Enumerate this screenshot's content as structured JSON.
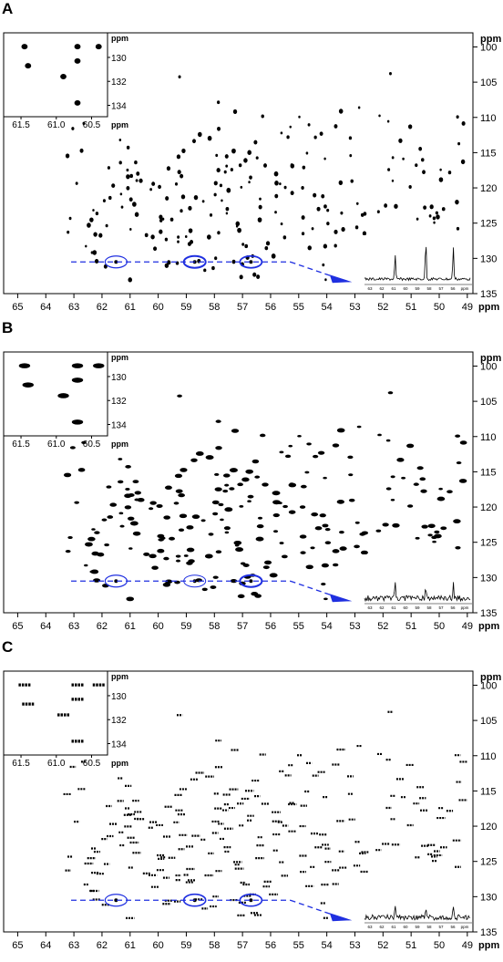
{
  "axis_unit": "ppm",
  "x_ticks": [
    65,
    64,
    63,
    62,
    61,
    60,
    59,
    58,
    57,
    56,
    55,
    54,
    53,
    52,
    51,
    50,
    49
  ],
  "y_ticks": [
    100,
    105,
    110,
    115,
    120,
    125,
    130,
    135
  ],
  "inset_x_ticks": [
    "61.5",
    "61.0",
    "60.5"
  ],
  "inset_y_ticks": [
    "130",
    "132",
    "134"
  ],
  "trace_ticks": [
    "63",
    "62",
    "61",
    "60",
    "59",
    "58",
    "57",
    "56",
    "ppm"
  ],
  "panels": [
    {
      "label": "A",
      "trace_peaks": [
        0.55,
        0.9,
        0.75
      ]
    },
    {
      "label": "B",
      "trace_peaks": [
        0.35,
        0.25,
        0.35
      ]
    },
    {
      "label": "C",
      "trace_peaks": [
        0.25,
        0.2,
        0.2
      ]
    }
  ],
  "marker_color": "#1f2fe0",
  "chart_data": [
    {
      "type": "scatter",
      "title": "A",
      "xlabel": "ppm",
      "ylabel": "ppm",
      "xlim": [
        65.5,
        48.8
      ],
      "ylim": [
        98,
        135
      ],
      "marked_peaks_y": 130.5,
      "marked_peaks_x": [
        61.5,
        58.7,
        56.7
      ],
      "inset_peaks": [
        [
          61.45,
          129.1
        ],
        [
          61.4,
          130.7
        ],
        [
          60.9,
          131.6
        ],
        [
          60.7,
          129.1
        ],
        [
          60.7,
          130.3
        ],
        [
          60.4,
          129.1
        ],
        [
          60.7,
          133.8
        ]
      ]
    },
    {
      "type": "scatter",
      "title": "B",
      "xlabel": "ppm",
      "ylabel": "ppm",
      "xlim": [
        65.5,
        48.8
      ],
      "ylim": [
        98,
        135
      ],
      "marked_peaks_y": 130.5,
      "marked_peaks_x": [
        61.5,
        58.7,
        56.7
      ],
      "inset_peaks": [
        [
          61.45,
          129.1
        ],
        [
          61.4,
          130.7
        ],
        [
          60.9,
          131.6
        ],
        [
          60.7,
          129.1
        ],
        [
          60.7,
          130.3
        ],
        [
          60.4,
          129.1
        ],
        [
          60.7,
          133.8
        ]
      ]
    },
    {
      "type": "scatter",
      "title": "C",
      "xlabel": "ppm",
      "ylabel": "ppm",
      "xlim": [
        65.5,
        48.8
      ],
      "ylim": [
        98,
        135
      ],
      "marked_peaks_y": 130.5,
      "marked_peaks_x": [
        61.5,
        58.7,
        56.7
      ],
      "inset_peaks": [
        [
          61.45,
          129.1
        ],
        [
          61.4,
          130.7
        ],
        [
          60.9,
          131.6
        ],
        [
          60.7,
          129.1
        ],
        [
          60.7,
          130.3
        ],
        [
          60.4,
          129.1
        ],
        [
          60.7,
          133.8
        ]
      ]
    }
  ]
}
